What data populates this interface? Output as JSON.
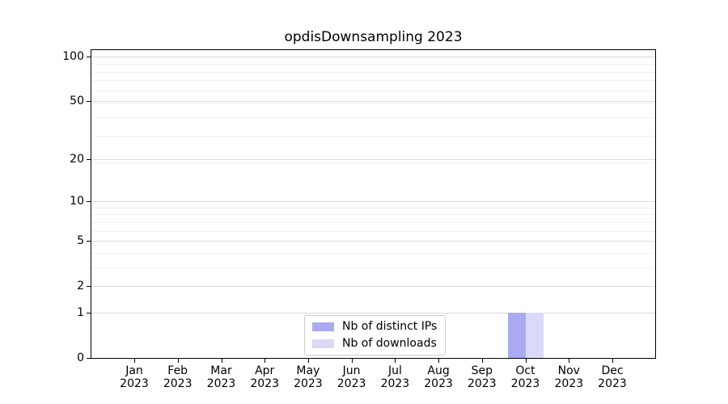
{
  "title": "opdisDownsampling 2023",
  "chart_data": {
    "type": "bar",
    "title": "opdisDownsampling 2023",
    "categories": [
      "Jan\n2023",
      "Feb\n2023",
      "Mar\n2023",
      "Apr\n2023",
      "May\n2023",
      "Jun\n2023",
      "Jul\n2023",
      "Aug\n2023",
      "Sep\n2023",
      "Oct\n2023",
      "Nov\n2023",
      "Dec\n2023"
    ],
    "series": [
      {
        "name": "Nb of distinct IPs",
        "color": "#aaaaf3",
        "values": [
          0,
          0,
          0,
          0,
          0,
          0,
          0,
          0,
          0,
          1,
          0,
          0
        ]
      },
      {
        "name": "Nb of downloads",
        "color": "#dadaf8",
        "values": [
          0,
          0,
          0,
          0,
          0,
          0,
          0,
          0,
          0,
          1,
          0,
          0
        ]
      }
    ],
    "xlabel": "",
    "ylabel": "",
    "yscale": "log1p",
    "yticks": [
      0,
      1,
      2,
      5,
      10,
      20,
      50,
      100
    ],
    "ylim": [
      0,
      110
    ],
    "grid": "both",
    "legend": {
      "location": "lower center"
    }
  },
  "colors": {
    "bar_distinct_ips": "#aaaaf3",
    "bar_downloads": "#dadaf8",
    "grid_major": "#d9d9d9",
    "grid_minor": "#f0f0f0",
    "spine": "#000000",
    "background": "#ffffff",
    "legend_border": "#cccccc"
  }
}
